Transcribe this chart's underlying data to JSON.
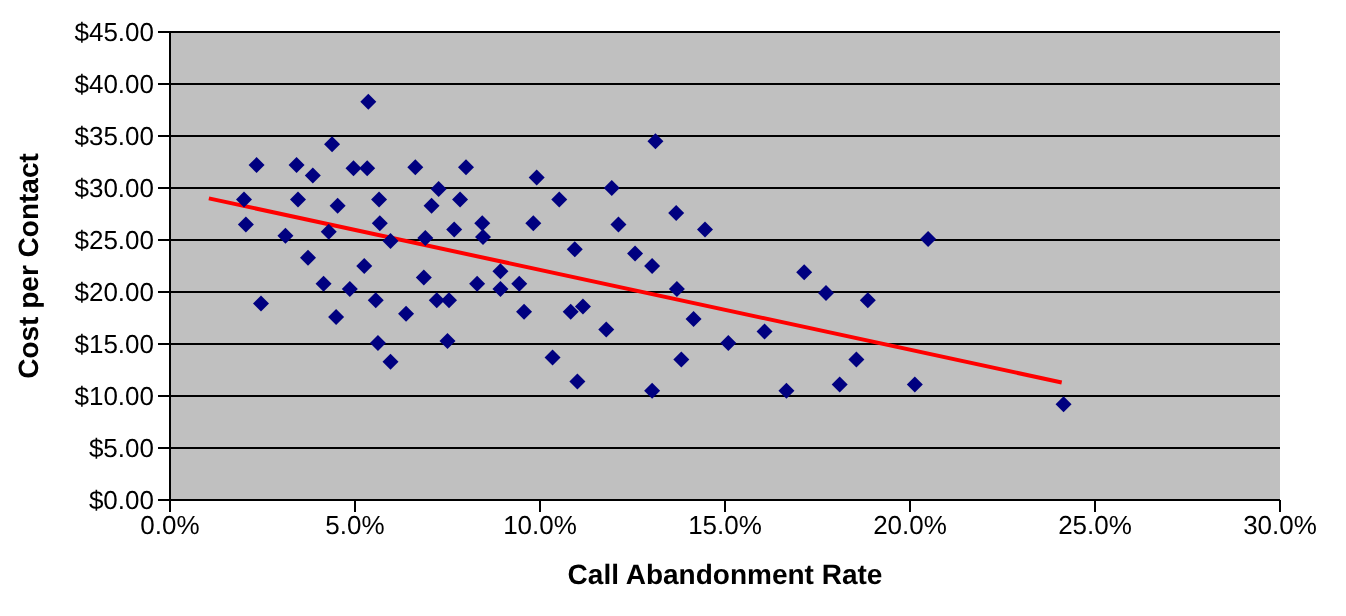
{
  "chart_data": {
    "type": "scatter",
    "xlabel": "Call Abandonment Rate",
    "ylabel": "Cost per Contact",
    "xlim": [
      0,
      30
    ],
    "ylim": [
      0,
      45
    ],
    "xticks": [
      {
        "value": 0,
        "label": "0.0%"
      },
      {
        "value": 5,
        "label": "5.0%"
      },
      {
        "value": 10,
        "label": "10.0%"
      },
      {
        "value": 15,
        "label": "15.0%"
      },
      {
        "value": 20,
        "label": "20.0%"
      },
      {
        "value": 25,
        "label": "25.0%"
      },
      {
        "value": 30,
        "label": "30.0%"
      }
    ],
    "yticks": [
      {
        "value": 0,
        "label": "$0.00"
      },
      {
        "value": 5,
        "label": "$5.00"
      },
      {
        "value": 10,
        "label": "$10.00"
      },
      {
        "value": 15,
        "label": "$15.00"
      },
      {
        "value": 20,
        "label": "$20.00"
      },
      {
        "value": 25,
        "label": "$25.00"
      },
      {
        "value": 30,
        "label": "$30.00"
      },
      {
        "value": 35,
        "label": "$35.00"
      },
      {
        "value": 40,
        "label": "$40.00"
      },
      {
        "value": 45,
        "label": "$45.00"
      }
    ],
    "grid": "y",
    "marker": "diamond",
    "series": [
      {
        "color": "#000080",
        "x": [
          2.0,
          2.05,
          2.34,
          2.46,
          3.12,
          3.42,
          3.46,
          3.73,
          3.86,
          4.15,
          4.29,
          4.38,
          4.49,
          4.53,
          4.86,
          4.96,
          5.25,
          5.33,
          5.36,
          5.56,
          5.62,
          5.65,
          5.67,
          5.96,
          5.96,
          6.38,
          6.63,
          6.86,
          6.9,
          7.07,
          7.21,
          7.26,
          7.5,
          7.54,
          7.68,
          7.84,
          8.0,
          8.3,
          8.44,
          8.46,
          8.93,
          8.93,
          9.44,
          9.57,
          9.82,
          9.91,
          10.34,
          10.52,
          10.83,
          10.94,
          11.01,
          11.16,
          11.79,
          11.94,
          12.12,
          12.57,
          13.03,
          13.03,
          13.12,
          13.68,
          13.7,
          13.82,
          14.15,
          14.46,
          15.09,
          16.07,
          16.66,
          17.14,
          17.73,
          18.1,
          18.55,
          18.86,
          20.13,
          20.49,
          24.15
        ],
        "values": [
          28.9,
          26.5,
          32.2,
          18.9,
          25.4,
          32.2,
          28.9,
          23.3,
          31.2,
          20.8,
          25.8,
          34.2,
          17.6,
          28.3,
          20.3,
          31.9,
          22.5,
          31.9,
          38.3,
          19.2,
          15.1,
          28.9,
          26.6,
          24.9,
          13.3,
          17.9,
          32.0,
          21.4,
          25.2,
          28.3,
          19.2,
          29.9,
          15.3,
          19.2,
          26.0,
          28.9,
          32.0,
          20.8,
          26.6,
          25.3,
          22.0,
          20.3,
          20.8,
          18.1,
          26.6,
          31.0,
          13.7,
          28.9,
          18.1,
          24.1,
          11.4,
          18.6,
          16.4,
          30.0,
          26.5,
          23.7,
          22.5,
          10.5,
          34.5,
          27.6,
          20.3,
          13.5,
          17.4,
          26.0,
          15.1,
          16.2,
          10.5,
          21.9,
          19.9,
          11.1,
          13.5,
          19.2,
          11.1,
          25.1,
          9.2
        ]
      },
      {
        "type": "line",
        "color": "#ff0000",
        "marker": "none",
        "x": [
          1.05,
          24.1
        ],
        "values": [
          29.0,
          11.3
        ]
      }
    ]
  }
}
